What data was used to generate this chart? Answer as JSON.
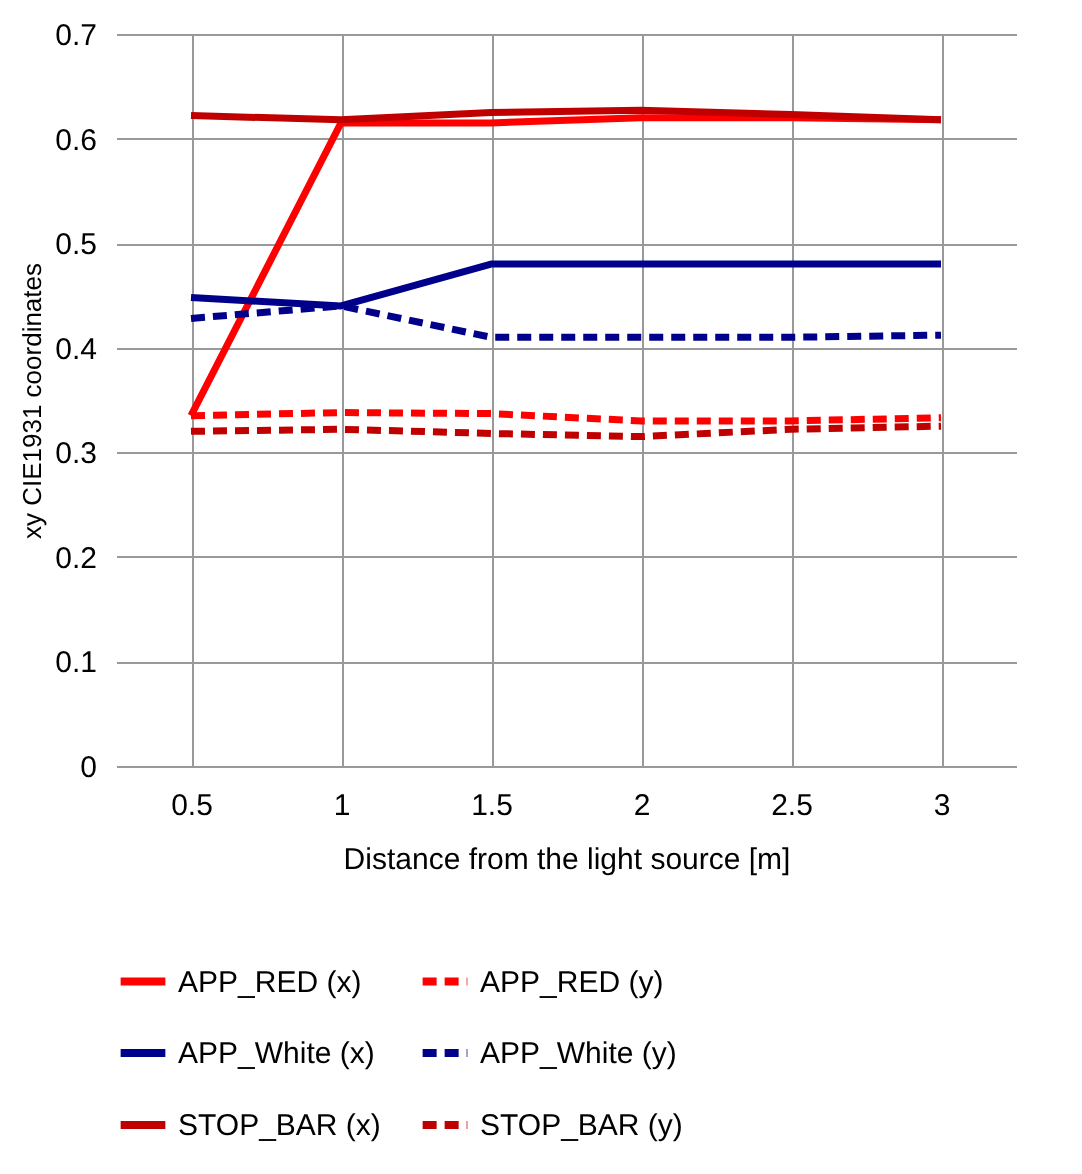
{
  "chart_data": {
    "type": "line",
    "xlabel": "Distance from the light source [m]",
    "ylabel": "xy  CIE1931 coordinates",
    "categories": [
      "0.5",
      "1",
      "1.5",
      "2",
      "2.5",
      "3"
    ],
    "ylim": [
      0,
      0.7
    ],
    "yticks": [
      0,
      0.1,
      0.2,
      0.3,
      0.4,
      0.5,
      0.6,
      0.7
    ],
    "grid": true,
    "legend": "bottom",
    "series": [
      {
        "name": "APP_RED (x)",
        "color": "#ff0000",
        "line_style": "solid",
        "values": [
          0.335,
          0.615,
          0.615,
          0.62,
          0.62,
          0.618
        ]
      },
      {
        "name": "APP_RED (y)",
        "color": "#ff0000",
        "line_style": "dashed",
        "values": [
          0.335,
          0.338,
          0.337,
          0.33,
          0.33,
          0.333
        ]
      },
      {
        "name": "APP_White (x)",
        "color": "#00008b",
        "line_style": "solid",
        "values": [
          0.448,
          0.44,
          0.48,
          0.48,
          0.48,
          0.48
        ]
      },
      {
        "name": "APP_White (y)",
        "color": "#00008b",
        "line_style": "dashed",
        "values": [
          0.428,
          0.44,
          0.41,
          0.41,
          0.41,
          0.412
        ]
      },
      {
        "name": "STOP_BAR (x)",
        "color": "#c00000",
        "line_style": "solid",
        "values": [
          0.622,
          0.618,
          0.625,
          0.627,
          0.623,
          0.618
        ]
      },
      {
        "name": "STOP_BAR (y)",
        "color": "#c00000",
        "line_style": "dashed",
        "values": [
          0.32,
          0.322,
          0.318,
          0.315,
          0.322,
          0.325
        ]
      }
    ]
  }
}
